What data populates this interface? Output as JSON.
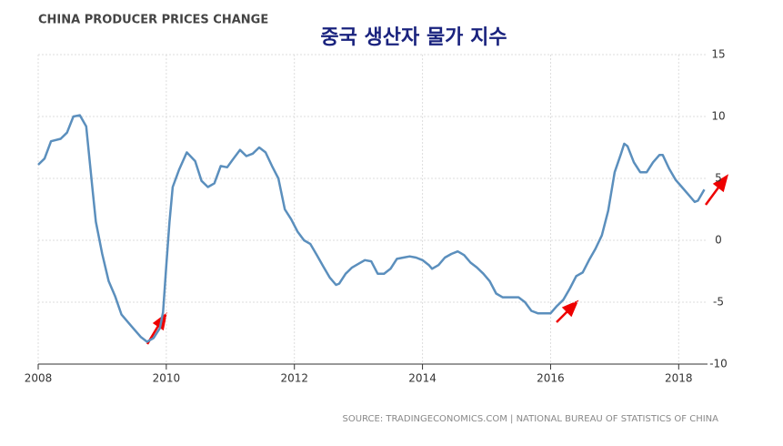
{
  "chart_data": {
    "type": "line",
    "title": "CHINA PRODUCER PRICES CHANGE",
    "subtitle": "중국 생산자 물가 지수",
    "source": "SOURCE: TRADINGECONOMICS.COM | NATIONAL BUREAU OF STATISTICS OF CHINA",
    "x": [
      2008.0,
      2008.1,
      2008.2,
      2008.35,
      2008.45,
      2008.55,
      2008.65,
      2008.75,
      2008.85,
      2008.9,
      2009.0,
      2009.1,
      2009.2,
      2009.3,
      2009.4,
      2009.5,
      2009.6,
      2009.7,
      2009.8,
      2009.9,
      2009.95,
      2010.0,
      2010.05,
      2010.1,
      2010.2,
      2010.32,
      2010.45,
      2010.55,
      2010.65,
      2010.75,
      2010.85,
      2010.95,
      2011.05,
      2011.15,
      2011.25,
      2011.35,
      2011.45,
      2011.55,
      2011.65,
      2011.75,
      2011.85,
      2011.95,
      2012.05,
      2012.15,
      2012.25,
      2012.35,
      2012.45,
      2012.55,
      2012.65,
      2012.7,
      2012.8,
      2012.9,
      2013.0,
      2013.1,
      2013.2,
      2013.3,
      2013.4,
      2013.5,
      2013.6,
      2013.7,
      2013.8,
      2013.9,
      2014.0,
      2014.1,
      2014.15,
      2014.25,
      2014.35,
      2014.45,
      2014.55,
      2014.65,
      2014.75,
      2014.85,
      2014.95,
      2015.05,
      2015.15,
      2015.25,
      2015.35,
      2015.5,
      2015.6,
      2015.7,
      2015.8,
      2015.9,
      2016.0,
      2016.1,
      2016.2,
      2016.3,
      2016.4,
      2016.5,
      2016.6,
      2016.7,
      2016.8,
      2016.9,
      2017.0,
      2017.1,
      2017.15,
      2017.2,
      2017.3,
      2017.4,
      2017.5,
      2017.6,
      2017.7,
      2017.75,
      2017.85,
      2017.95,
      2018.05,
      2018.15,
      2018.25,
      2018.3,
      2018.4
    ],
    "series": [
      {
        "color": "#5b8fbd",
        "values": [
          6.1,
          6.6,
          8.0,
          8.2,
          8.7,
          10.0,
          10.1,
          9.2,
          4.0,
          1.5,
          -1.1,
          -3.3,
          -4.5,
          -6.0,
          -6.6,
          -7.2,
          -7.8,
          -8.2,
          -7.9,
          -7.1,
          -5.8,
          -2.0,
          1.5,
          4.3,
          5.7,
          7.1,
          6.4,
          4.8,
          4.3,
          4.6,
          6.0,
          5.9,
          6.6,
          7.3,
          6.8,
          7.0,
          7.5,
          7.1,
          6.0,
          5.0,
          2.5,
          1.7,
          0.7,
          0.0,
          -0.3,
          -1.2,
          -2.1,
          -3.0,
          -3.6,
          -3.5,
          -2.7,
          -2.2,
          -1.9,
          -1.6,
          -1.7,
          -2.7,
          -2.7,
          -2.3,
          -1.5,
          -1.4,
          -1.3,
          -1.4,
          -1.6,
          -2.0,
          -2.3,
          -2.0,
          -1.4,
          -1.1,
          -0.9,
          -1.2,
          -1.8,
          -2.2,
          -2.7,
          -3.3,
          -4.3,
          -4.6,
          -4.6,
          -4.6,
          -5.0,
          -5.7,
          -5.9,
          -5.9,
          -5.9,
          -5.3,
          -4.8,
          -3.9,
          -2.9,
          -2.6,
          -1.6,
          -0.7,
          0.4,
          2.4,
          5.5,
          7.0,
          7.8,
          7.6,
          6.3,
          5.5,
          5.5,
          6.3,
          6.9,
          6.9,
          5.8,
          4.9,
          4.3,
          3.7,
          3.1,
          3.2,
          4.1
        ]
      }
    ],
    "xlim": [
      2008,
      2018.45
    ],
    "xticks": [
      2008,
      2010,
      2012,
      2014,
      2016,
      2018
    ],
    "ylim": [
      -10,
      15
    ],
    "yticks": [
      -10,
      -5,
      0,
      5,
      10,
      15
    ],
    "grid": true
  }
}
